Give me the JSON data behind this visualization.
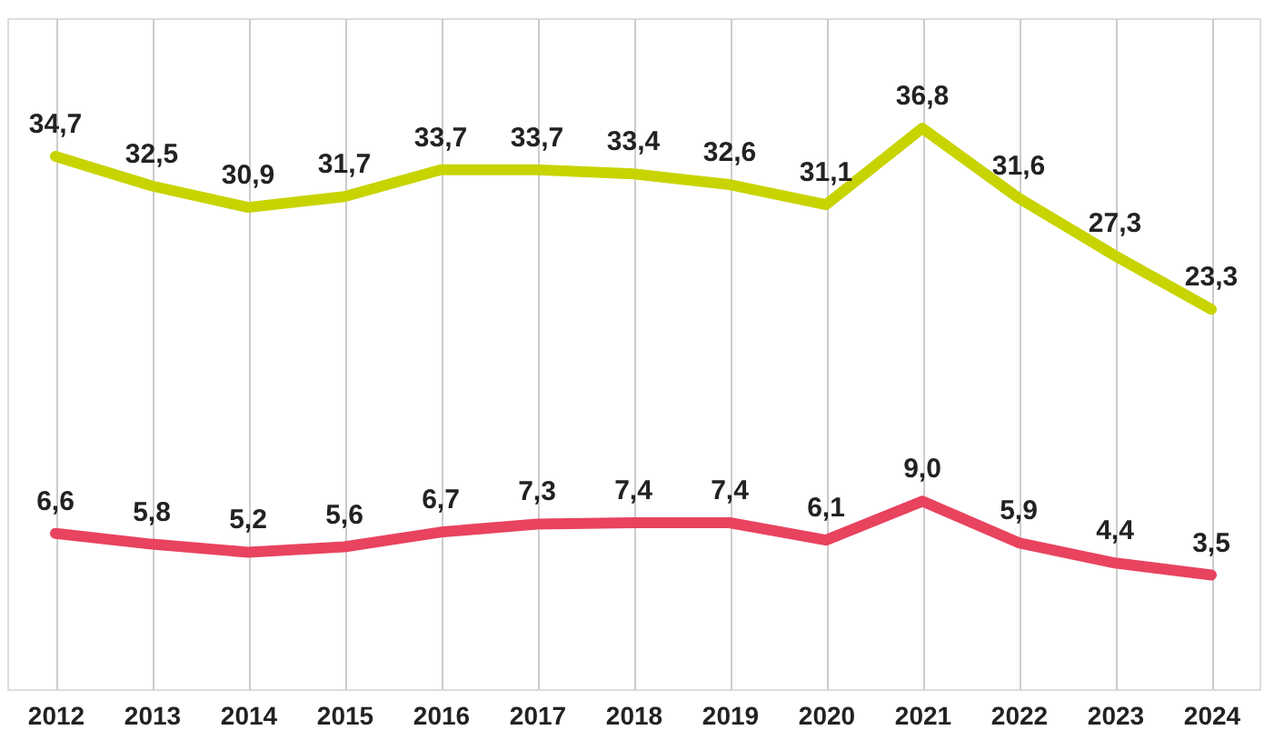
{
  "chart_data": {
    "type": "line",
    "categories": [
      "2012",
      "2013",
      "2014",
      "2015",
      "2016",
      "2017",
      "2018",
      "2019",
      "2020",
      "2021",
      "2022",
      "2023",
      "2024"
    ],
    "series": [
      {
        "color": "#c8d400",
        "values": [
          34.7,
          32.5,
          30.9,
          31.7,
          33.7,
          33.7,
          33.4,
          32.6,
          31.1,
          36.8,
          31.6,
          27.3,
          23.3
        ],
        "value_labels": [
          "34,7",
          "32,5",
          "30,9",
          "31,7",
          "33,7",
          "33,7",
          "33,4",
          "32,6",
          "31,1",
          "36,8",
          "31,6",
          "27,3",
          "23,3"
        ]
      },
      {
        "color": "#e8435f",
        "values": [
          6.6,
          5.8,
          5.2,
          5.6,
          6.7,
          7.3,
          7.4,
          7.4,
          6.1,
          9.0,
          5.9,
          4.4,
          3.5
        ],
        "value_labels": [
          "6,6",
          "5,8",
          "5,2",
          "5,6",
          "6,7",
          "7,3",
          "7,4",
          "7,4",
          "6,1",
          "9,0",
          "5,9",
          "4,4",
          "3,5"
        ]
      }
    ],
    "grid": "x",
    "tick_labels": "x",
    "marker": "none",
    "line_style": "solid"
  }
}
